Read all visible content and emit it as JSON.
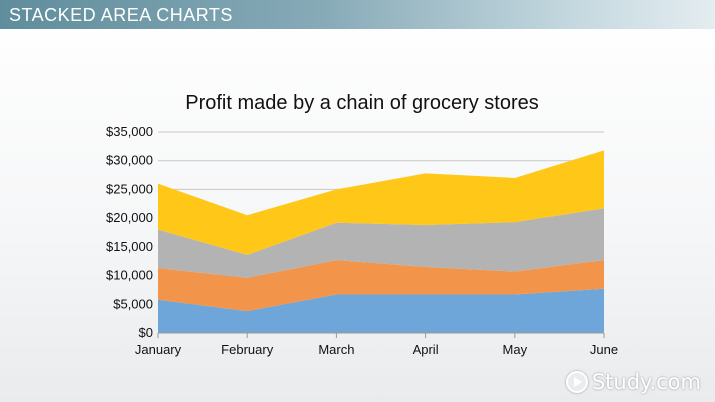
{
  "header": {
    "title": "STACKED AREA CHARTS"
  },
  "watermark": {
    "text": "Study.com",
    "icon": "play-circle-icon"
  },
  "chart_data": {
    "type": "area",
    "stacked": true,
    "title": "Profit made by a chain of grocery stores",
    "xlabel": "",
    "ylabel": "",
    "categories": [
      "January",
      "February",
      "March",
      "April",
      "May",
      "June"
    ],
    "ylim": [
      0,
      35000
    ],
    "yticks": [
      0,
      5000,
      10000,
      15000,
      20000,
      25000,
      30000,
      35000
    ],
    "ytick_labels": [
      "$0",
      "$5,000",
      "$10,000",
      "$15,000",
      "$20,000",
      "$25,000",
      "$30,000",
      "$35,000"
    ],
    "grid": true,
    "legend": "none",
    "series": [
      {
        "values": [
          5800,
          3800,
          6700,
          6700,
          6700,
          7700
        ],
        "color": "#6fa6da"
      },
      {
        "values": [
          5500,
          5800,
          6000,
          4800,
          4000,
          5000
        ],
        "color": "#f2954a"
      },
      {
        "values": [
          6700,
          4000,
          6500,
          7300,
          8600,
          9000
        ],
        "color": "#b3b3b3"
      },
      {
        "values": [
          8000,
          6900,
          5800,
          9000,
          7700,
          10100
        ],
        "color": "#ffc818"
      }
    ]
  }
}
